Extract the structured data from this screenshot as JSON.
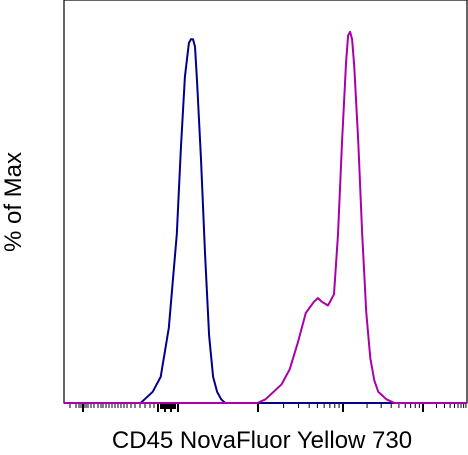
{
  "chart_data": {
    "type": "line",
    "title": "",
    "xlabel": "CD45 NovaFluor Yellow 730",
    "ylabel": "% of Max",
    "scale_x": "biexponential (logicle)",
    "tick_labels_shown": false,
    "ylim": [
      0,
      100
    ],
    "grid": false,
    "legend": "none",
    "series": [
      {
        "color": "#00008b",
        "points": [
          [
            0.0,
            0
          ],
          [
            0.19,
            0
          ],
          [
            0.2,
            1
          ],
          [
            0.22,
            3
          ],
          [
            0.24,
            7
          ],
          [
            0.26,
            20
          ],
          [
            0.28,
            45
          ],
          [
            0.29,
            68
          ],
          [
            0.3,
            87
          ],
          [
            0.31,
            96
          ],
          [
            0.315,
            97
          ],
          [
            0.32,
            97
          ],
          [
            0.325,
            95
          ],
          [
            0.33,
            86
          ],
          [
            0.34,
            65
          ],
          [
            0.35,
            40
          ],
          [
            0.36,
            18
          ],
          [
            0.37,
            7
          ],
          [
            0.38,
            3
          ],
          [
            0.39,
            1
          ],
          [
            0.4,
            0
          ],
          [
            1.0,
            0
          ]
        ]
      },
      {
        "color": "#aa00aa",
        "points": [
          [
            0.0,
            0
          ],
          [
            0.48,
            0
          ],
          [
            0.5,
            1
          ],
          [
            0.52,
            3
          ],
          [
            0.54,
            5
          ],
          [
            0.56,
            9
          ],
          [
            0.58,
            16
          ],
          [
            0.6,
            24
          ],
          [
            0.62,
            27
          ],
          [
            0.63,
            28
          ],
          [
            0.64,
            27
          ],
          [
            0.655,
            26
          ],
          [
            0.67,
            29
          ],
          [
            0.68,
            45
          ],
          [
            0.69,
            70
          ],
          [
            0.7,
            91
          ],
          [
            0.705,
            98
          ],
          [
            0.71,
            99
          ],
          [
            0.715,
            97
          ],
          [
            0.72,
            90
          ],
          [
            0.73,
            70
          ],
          [
            0.74,
            45
          ],
          [
            0.75,
            24
          ],
          [
            0.76,
            12
          ],
          [
            0.77,
            6
          ],
          [
            0.78,
            3
          ],
          [
            0.8,
            1
          ],
          [
            0.82,
            0
          ],
          [
            1.0,
            0
          ]
        ]
      }
    ],
    "colors": {
      "axis": "#000000",
      "background": "#ffffff"
    }
  }
}
